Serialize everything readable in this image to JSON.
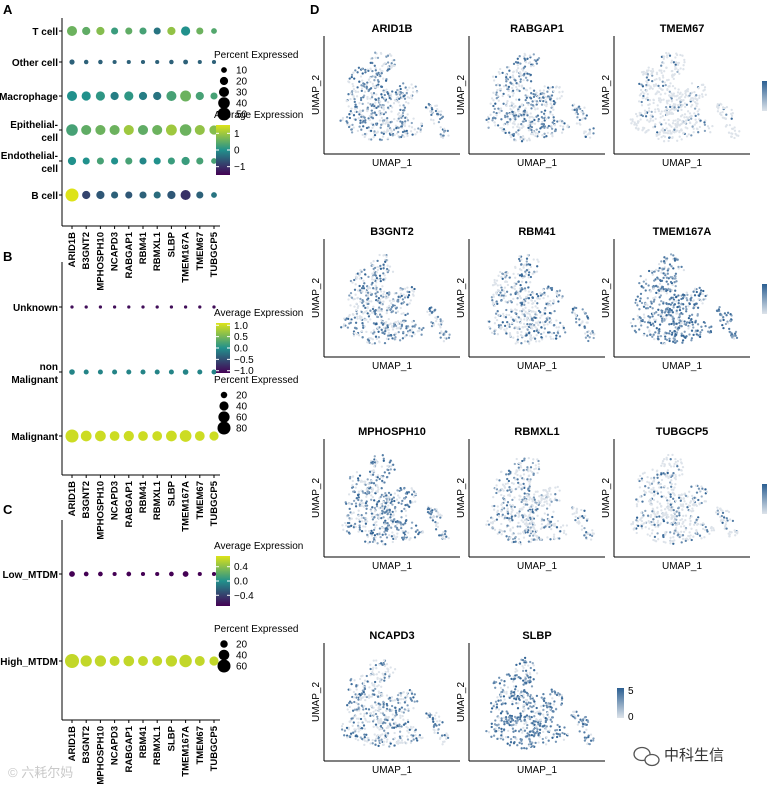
{
  "panel_letters": {
    "a": "A",
    "b": "B",
    "c": "C",
    "d": "D"
  },
  "genes": [
    "ARID1B",
    "B3GNT2",
    "MPHOSPH10",
    "NCAPD3",
    "RABGAP1",
    "RBM41",
    "RBMXL1",
    "SLBP",
    "TMEM167A",
    "TMEM67",
    "TUBGCP5"
  ],
  "colors": {
    "low": "#440154",
    "mid": "#21918c",
    "high": "#dde318",
    "feature_low": "#dde3ea",
    "feature_high": "#2b5f92"
  },
  "chart_data": [
    {
      "id": "A",
      "type": "dotplot",
      "rows": [
        "T cell",
        "Other cell",
        "Macrophage",
        "Epithelial cell",
        "Endothelial cell",
        "B cell"
      ],
      "row_labels": [
        [
          "T cell"
        ],
        [
          "Other cell"
        ],
        [
          "Macrophage"
        ],
        [
          "Epithelial-",
          "cell"
        ],
        [
          "Endothelial-",
          "cell"
        ],
        [
          "B cell"
        ]
      ],
      "columns": [
        "ARID1B",
        "B3GNT2",
        "MPHOSPH10",
        "NCAPD3",
        "RABGAP1",
        "RBM41",
        "RBMXL1",
        "SLBP",
        "TMEM167A",
        "TMEM67",
        "TUBGCP5"
      ],
      "pct": [
        [
          30,
          20,
          20,
          15,
          15,
          15,
          15,
          20,
          25,
          15,
          10
        ],
        [
          8,
          6,
          6,
          5,
          5,
          5,
          5,
          6,
          7,
          5,
          5
        ],
        [
          30,
          25,
          25,
          20,
          25,
          20,
          20,
          30,
          35,
          20,
          15
        ],
        [
          40,
          30,
          30,
          30,
          30,
          30,
          30,
          35,
          40,
          30,
          25
        ],
        [
          20,
          15,
          15,
          15,
          15,
          15,
          15,
          15,
          20,
          15,
          10
        ],
        [
          50,
          20,
          20,
          15,
          15,
          15,
          15,
          20,
          30,
          15,
          10
        ]
      ],
      "avg": [
        [
          0.6,
          0.5,
          0.8,
          0.2,
          0.5,
          0.3,
          -0.3,
          0.9,
          0.0,
          0.6,
          0.4
        ],
        [
          -0.5,
          -0.5,
          -0.5,
          -0.5,
          -0.5,
          -0.5,
          -0.5,
          -0.5,
          -0.5,
          -0.5,
          -0.5
        ],
        [
          0.0,
          0.0,
          0.1,
          -0.2,
          0.1,
          -0.2,
          -0.3,
          0.3,
          0.6,
          0.3,
          0.3
        ],
        [
          0.3,
          0.5,
          0.6,
          0.6,
          1.0,
          0.5,
          0.6,
          1.0,
          0.6,
          0.9,
          0.8
        ],
        [
          0.0,
          0.0,
          0.3,
          0.0,
          0.3,
          -0.1,
          0.0,
          0.2,
          0.2,
          0.3,
          0.3
        ],
        [
          1.5,
          -0.8,
          -0.6,
          -0.5,
          -0.6,
          -0.5,
          -0.4,
          -0.6,
          -1.0,
          -0.5,
          -0.3
        ]
      ],
      "color_range": [
        -1.5,
        1.5
      ],
      "size_legend": {
        "title": "Percent Expressed",
        "breaks": [
          10,
          20,
          30,
          40,
          50
        ]
      },
      "color_legend": {
        "title": "Average Expression",
        "ticks": [
          1,
          0,
          -1
        ],
        "tick_labels": [
          "1",
          "0",
          "−1"
        ]
      }
    },
    {
      "id": "B",
      "type": "dotplot",
      "rows": [
        "Unknown",
        "non Malignant",
        "Malignant"
      ],
      "row_labels": [
        [
          "Unknown"
        ],
        [
          "non",
          "Malignant"
        ],
        [
          "Malignant"
        ]
      ],
      "columns": [
        "ARID1B",
        "B3GNT2",
        "MPHOSPH10",
        "NCAPD3",
        "RABGAP1",
        "RBM41",
        "RBMXL1",
        "SLBP",
        "TMEM167A",
        "TMEM67",
        "TUBGCP5"
      ],
      "pct": [
        [
          5,
          5,
          5,
          5,
          5,
          5,
          5,
          5,
          5,
          5,
          5
        ],
        [
          15,
          12,
          12,
          12,
          12,
          12,
          12,
          12,
          15,
          12,
          12
        ],
        [
          80,
          55,
          55,
          45,
          50,
          45,
          45,
          55,
          65,
          45,
          40
        ]
      ],
      "avg": [
        [
          -1.0,
          -1.0,
          -1.0,
          -1.0,
          -1.0,
          -1.0,
          -1.0,
          -1.0,
          -1.0,
          -1.0,
          -1.0
        ],
        [
          -0.1,
          -0.1,
          -0.1,
          -0.1,
          -0.1,
          -0.1,
          -0.1,
          -0.1,
          -0.1,
          -0.1,
          -0.1
        ],
        [
          1.0,
          1.0,
          1.0,
          1.0,
          1.0,
          1.0,
          1.0,
          1.0,
          1.0,
          1.0,
          1.0
        ]
      ],
      "color_range": [
        -1.1,
        1.1
      ],
      "size_legend": {
        "title": "Percent Expressed",
        "breaks": [
          20,
          40,
          60,
          80
        ]
      },
      "color_legend": {
        "title": "Average Expression",
        "ticks": [
          1.0,
          0.5,
          0.0,
          -0.5,
          -1.0
        ],
        "tick_labels": [
          "1.0",
          "0.5",
          "0.0",
          "−0.5",
          "−1.0"
        ]
      }
    },
    {
      "id": "C",
      "type": "dotplot",
      "rows": [
        "Low_MTDM",
        "High_MTDM"
      ],
      "row_labels": [
        [
          "Low_MTDM"
        ],
        [
          "High_MTDM"
        ]
      ],
      "columns": [
        "ARID1B",
        "B3GNT2",
        "MPHOSPH10",
        "NCAPD3",
        "RABGAP1",
        "RBM41",
        "RBMXL1",
        "SLBP",
        "TMEM167A",
        "TMEM67",
        "TUBGCP5"
      ],
      "pct": [
        [
          12,
          8,
          8,
          6,
          8,
          6,
          6,
          8,
          12,
          6,
          6
        ],
        [
          70,
          45,
          45,
          35,
          40,
          35,
          35,
          45,
          55,
          35,
          30
        ]
      ],
      "avg": [
        [
          -0.7,
          -0.7,
          -0.7,
          -0.7,
          -0.7,
          -0.7,
          -0.7,
          -0.7,
          -0.7,
          -0.7,
          -0.7
        ],
        [
          0.6,
          0.6,
          0.6,
          0.6,
          0.6,
          0.6,
          0.6,
          0.6,
          0.6,
          0.6,
          0.6
        ]
      ],
      "color_range": [
        -0.7,
        0.7
      ],
      "size_legend": {
        "title": "Percent Expressed",
        "breaks": [
          20,
          40,
          60
        ]
      },
      "color_legend": {
        "title": "Average Expression",
        "ticks": [
          0.4,
          0.0,
          -0.4
        ],
        "tick_labels": [
          "0.4",
          "0.0",
          "−0.4"
        ]
      }
    },
    {
      "id": "D",
      "type": "umap_feature_plots",
      "xlabel": "UMAP_1",
      "ylabel": "UMAP_2",
      "panels": [
        "ARID1B",
        "RABGAP1",
        "TMEM67",
        "B3GNT2",
        "RBM41",
        "TMEM167A",
        "MPHOSPH10",
        "RBMXL1",
        "TUBGCP5",
        "NCAPD3",
        "SLBP"
      ],
      "intensity": [
        0.6,
        0.5,
        0.15,
        0.55,
        0.45,
        0.8,
        0.6,
        0.35,
        0.3,
        0.45,
        0.75
      ],
      "scale_range": [
        0,
        5
      ],
      "scale_ticks": [
        "5",
        "0"
      ]
    }
  ],
  "watermarks": {
    "left": "© 六耗尔妈",
    "right": "中科生信"
  }
}
